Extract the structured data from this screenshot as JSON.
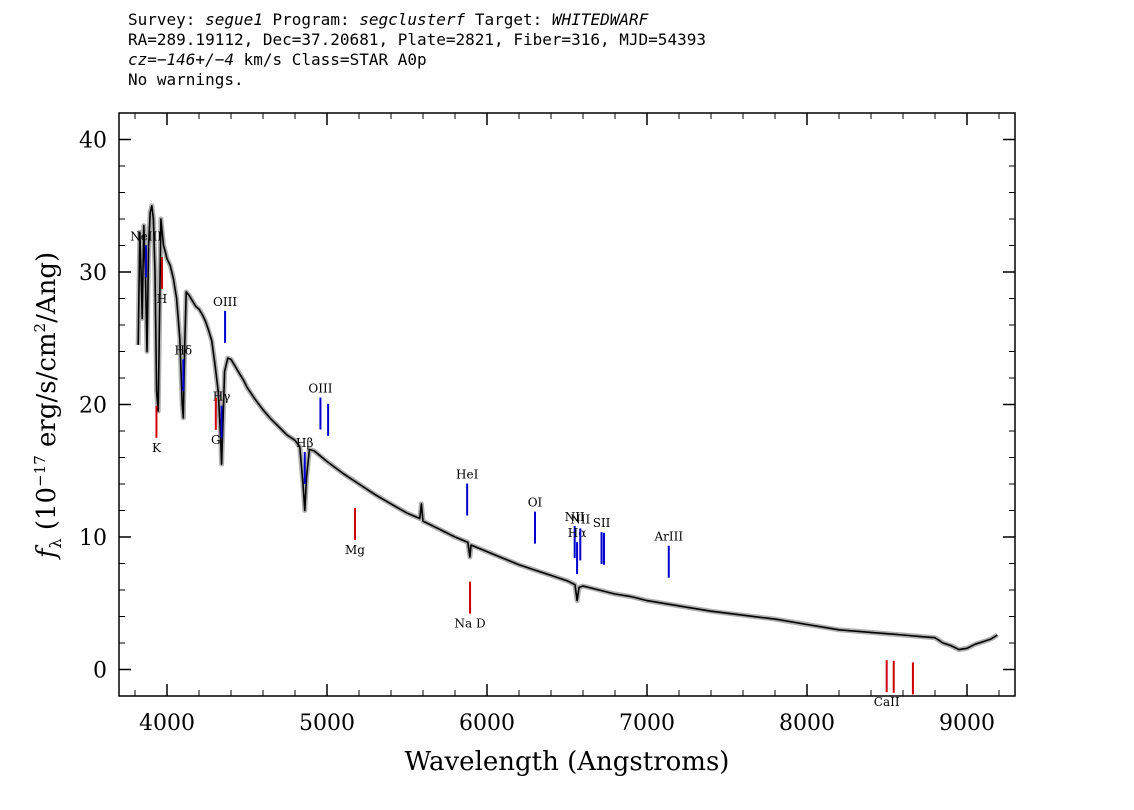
{
  "header": {
    "line1": {
      "survey_label": "Survey:",
      "survey": "segue1",
      "program_label": "Program:",
      "program": "segclusterf",
      "target_label": "Target:",
      "target": "WHITEDWARF"
    },
    "line2": "RA=289.19112, Dec=37.20681, Plate=2821, Fiber=316, MJD=54393",
    "line3": {
      "cz": "cz=−146+/−4",
      "rest": " km/s Class=STAR A0p"
    },
    "line4": "No warnings."
  },
  "colors": {
    "emission": "#0000cc",
    "absorption": "#cc0000",
    "spectrum": "#000000",
    "error": "#b0b0b0"
  },
  "chart_data": {
    "type": "line",
    "xlabel": "Wavelength (Angstroms)",
    "ylabel": "f_λ (10^-17 erg/s/cm^2/Ang)",
    "xlim": [
      3700,
      9300
    ],
    "ylim": [
      -2,
      42
    ],
    "xticks": [
      4000,
      5000,
      6000,
      7000,
      8000,
      9000
    ],
    "yticks": [
      0,
      10,
      20,
      30,
      40
    ],
    "grid": false,
    "series": [
      {
        "x": [
          3820,
          3830,
          3838,
          3845,
          3855,
          3865,
          3875,
          3885,
          3895,
          3905,
          3915,
          3925,
          3935,
          3945,
          3955,
          3962,
          3970,
          3978,
          3990,
          4000,
          4020,
          4040,
          4060,
          4080,
          4095,
          4102,
          4110,
          4120,
          4140,
          4160,
          4180,
          4200,
          4220,
          4240,
          4260,
          4280,
          4300,
          4320,
          4335,
          4341,
          4348,
          4360,
          4380,
          4400,
          4420,
          4440,
          4460,
          4480,
          4500,
          4550,
          4600,
          4650,
          4700,
          4750,
          4800,
          4830,
          4850,
          4861,
          4872,
          4890,
          4920,
          4950,
          5000,
          5100,
          5200,
          5300,
          5400,
          5500,
          5580,
          5590,
          5600,
          5700,
          5800,
          5880,
          5893,
          5900,
          6000,
          6100,
          6200,
          6300,
          6400,
          6500,
          6550,
          6563,
          6575,
          6600,
          6700,
          6800,
          6900,
          7000,
          7200,
          7400,
          7600,
          7800,
          8000,
          8200,
          8400,
          8500,
          8600,
          8700,
          8800,
          8850,
          8900,
          8950,
          9000,
          9050,
          9100,
          9150,
          9190
        ],
        "y": [
          24.5,
          33.0,
          30.0,
          26.5,
          33.5,
          30.0,
          24.0,
          32.0,
          34.5,
          35.0,
          34.0,
          30.0,
          21.0,
          19.5,
          28.0,
          34.0,
          33.0,
          32.0,
          31.5,
          31.0,
          30.5,
          29.5,
          28.0,
          25.0,
          20.0,
          19.0,
          24.0,
          28.5,
          28.2,
          27.8,
          27.4,
          27.2,
          26.8,
          26.3,
          25.6,
          24.8,
          23.0,
          21.0,
          17.5,
          15.5,
          18.0,
          22.5,
          23.5,
          23.4,
          23.0,
          22.6,
          22.2,
          21.8,
          21.3,
          20.4,
          19.6,
          18.9,
          18.3,
          17.7,
          17.3,
          16.8,
          14.0,
          12.0,
          14.5,
          16.6,
          16.5,
          16.2,
          15.7,
          14.8,
          14.0,
          13.2,
          12.5,
          11.8,
          11.4,
          12.5,
          11.2,
          10.6,
          10.0,
          9.6,
          8.5,
          9.4,
          8.9,
          8.4,
          7.9,
          7.5,
          7.1,
          6.7,
          6.4,
          5.2,
          6.2,
          6.3,
          6.0,
          5.7,
          5.5,
          5.2,
          4.8,
          4.4,
          4.1,
          3.8,
          3.4,
          3.0,
          2.8,
          2.7,
          2.6,
          2.5,
          2.4,
          2.0,
          1.8,
          1.5,
          1.6,
          1.9,
          2.1,
          2.3,
          2.6
        ]
      }
    ],
    "emission_lines": [
      {
        "label": "NeIII",
        "x": 3869
      },
      {
        "label": "Hδ",
        "x": 4102
      },
      {
        "label": "Hγ",
        "x": 4341
      },
      {
        "label": "OIII",
        "x": 4363
      },
      {
        "label": "Hβ",
        "x": 4861
      },
      {
        "label": "OIII",
        "x": 4959
      },
      {
        "label": "OIII",
        "x": 5007
      },
      {
        "label": "HeI",
        "x": 5876
      },
      {
        "label": "OI",
        "x": 6300
      },
      {
        "label": "NII",
        "x": 6548
      },
      {
        "label": "Hα",
        "x": 6563
      },
      {
        "label": "NII",
        "x": 6583
      },
      {
        "label": "SII",
        "x": 6716
      },
      {
        "label": "SII",
        "x": 6731
      },
      {
        "label": "ArIII",
        "x": 7136
      }
    ],
    "absorption_lines": [
      {
        "label": "K",
        "x": 3934
      },
      {
        "label": "H",
        "x": 3969
      },
      {
        "label": "G",
        "x": 4305
      },
      {
        "label": "Mg",
        "x": 5175
      },
      {
        "label": "Na D",
        "x": 5894
      },
      {
        "label": "CaII",
        "x": 8498
      },
      {
        "label": "CaII",
        "x": 8542
      },
      {
        "label": "CaII",
        "x": 8662
      }
    ]
  }
}
